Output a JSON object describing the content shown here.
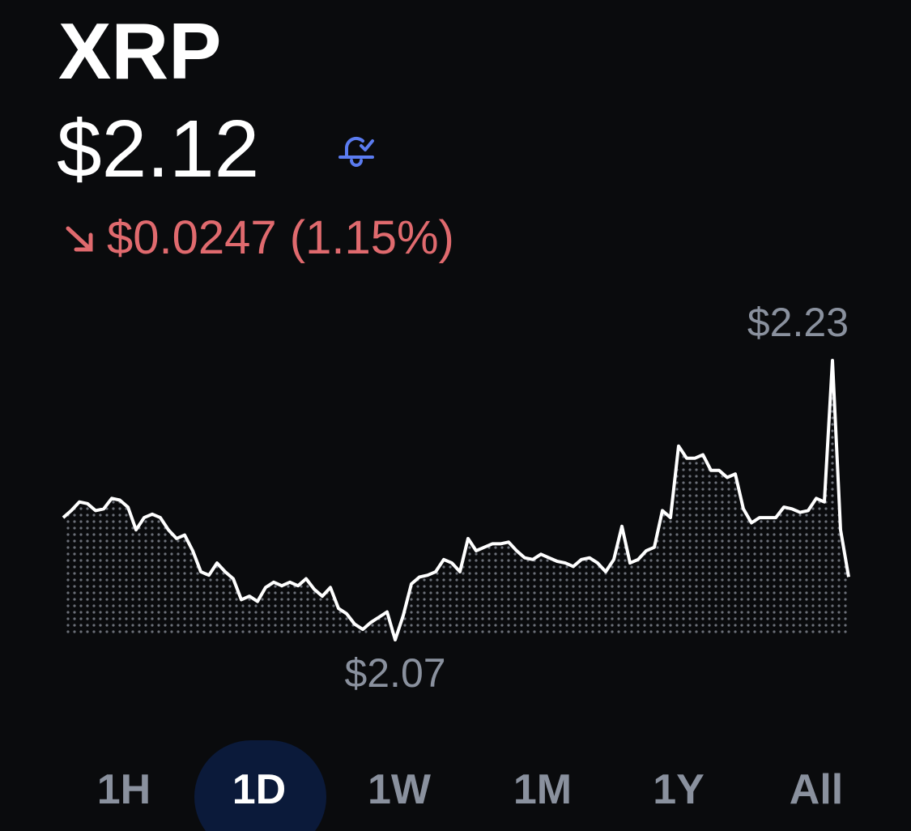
{
  "header": {
    "title": "XRP",
    "price": "$2.12",
    "change": "$0.0247 (1.15%)"
  },
  "chart_data": {
    "type": "line",
    "color": "#ffffff",
    "values": [
      2.14,
      2.144,
      2.149,
      2.148,
      2.144,
      2.145,
      2.151,
      2.15,
      2.146,
      2.133,
      2.14,
      2.142,
      2.14,
      2.133,
      2.128,
      2.13,
      2.121,
      2.109,
      2.107,
      2.114,
      2.109,
      2.105,
      2.093,
      2.095,
      2.092,
      2.1,
      2.103,
      2.101,
      2.103,
      2.101,
      2.105,
      2.099,
      2.095,
      2.1,
      2.088,
      2.085,
      2.079,
      2.076,
      2.08,
      2.083,
      2.086,
      2.07,
      2.084,
      2.102,
      2.106,
      2.107,
      2.109,
      2.116,
      2.114,
      2.109,
      2.128,
      2.121,
      2.123,
      2.125,
      2.125,
      2.126,
      2.121,
      2.117,
      2.116,
      2.119,
      2.117,
      2.115,
      2.114,
      2.112,
      2.116,
      2.117,
      2.114,
      2.109,
      2.116,
      2.135,
      2.114,
      2.116,
      2.121,
      2.123,
      2.144,
      2.14,
      2.181,
      2.174,
      2.174,
      2.176,
      2.167,
      2.167,
      2.163,
      2.165,
      2.145,
      2.137,
      2.14,
      2.14,
      2.14,
      2.146,
      2.145,
      2.143,
      2.144,
      2.151,
      2.149,
      2.23,
      2.133,
      2.106
    ],
    "max_label": "$2.23",
    "min_label": "$2.07"
  },
  "tabs": {
    "items": [
      "1H",
      "1D",
      "1W",
      "1M",
      "1Y",
      "All"
    ],
    "selected": 1
  }
}
